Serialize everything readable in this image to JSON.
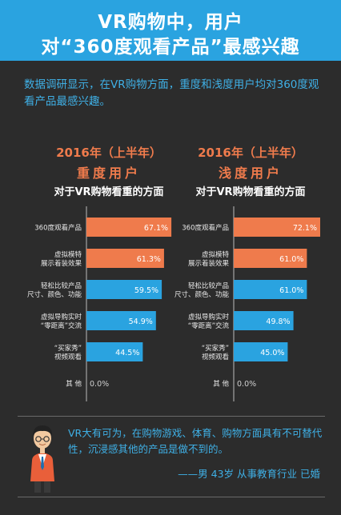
{
  "header": {
    "title_line1": "VR购物中，用户",
    "title_line2": "对“360度观看产品”最感兴趣"
  },
  "intro": "数据调研显示，在VR购物方面，重度和浅度用户均对360度观看产品最感兴趣。",
  "colors": {
    "banner": "#2aa3e0",
    "orange": "#ef7b4c",
    "blue": "#2aa3e0",
    "background": "#2c2c2c"
  },
  "chart_data": [
    {
      "type": "bar",
      "title": "2016年（上半年）",
      "group": "重度用户",
      "subtitle": "对于VR购物看重的方面",
      "categories": [
        "360度观看产品",
        "虚拟模特展示着装效果",
        "轻松比较产品尺寸、颜色、功能",
        "虚拟导购实时“零距离”交流",
        "“买家秀”视频观看",
        "其他"
      ],
      "category_lines": [
        [
          "360度观看产品"
        ],
        [
          "虚拟模特",
          "展示着装效果"
        ],
        [
          "轻松比较产品",
          "尺寸、颜色、功能"
        ],
        [
          "虚拟导购实时",
          "“零距离”交流"
        ],
        [
          "“买家秀”",
          "视频观看"
        ],
        [
          "其 他"
        ]
      ],
      "values": [
        67.1,
        61.3,
        59.5,
        54.9,
        44.5,
        0.0
      ],
      "labels": [
        "67.1%",
        "61.3%",
        "59.5%",
        "54.9%",
        "44.5%",
        "0.0%"
      ],
      "bar_colors": [
        "#ef7b4c",
        "#ef7b4c",
        "#2aa3e0",
        "#2aa3e0",
        "#2aa3e0",
        "#2aa3e0"
      ],
      "xlim": [
        0,
        100
      ]
    },
    {
      "type": "bar",
      "title": "2016年（上半年）",
      "group": "浅度用户",
      "subtitle": "对于VR购物看重的方面",
      "categories": [
        "360度观看产品",
        "虚拟模特展示着装效果",
        "轻松比较产品尺寸、颜色、功能",
        "虚拟导购实时“零距离”交流",
        "“买家秀”视频观看",
        "其他"
      ],
      "category_lines": [
        [
          "360度观看产品"
        ],
        [
          "虚拟模特",
          "展示着装效果"
        ],
        [
          "轻松比较产品",
          "尺寸、颜色、功能"
        ],
        [
          "虚拟导购实时",
          "“零距离”交流"
        ],
        [
          "“买家秀”",
          "视频观看"
        ],
        [
          "其 他"
        ]
      ],
      "values": [
        72.1,
        61.0,
        61.0,
        49.8,
        45.0,
        0.0
      ],
      "labels": [
        "72.1%",
        "61.0%",
        "61.0%",
        "49.8%",
        "45.0%",
        "0.0%"
      ],
      "bar_colors": [
        "#ef7b4c",
        "#ef7b4c",
        "#2aa3e0",
        "#2aa3e0",
        "#2aa3e0",
        "#2aa3e0"
      ],
      "xlim": [
        0,
        100
      ]
    }
  ],
  "quote": {
    "text": "VR大有可为，在购物游戏、体育、购物方面具有不可替代性，沉浸感其他的产品是做不到的。",
    "author": "——男 43岁 从事教育行业 已婚"
  }
}
